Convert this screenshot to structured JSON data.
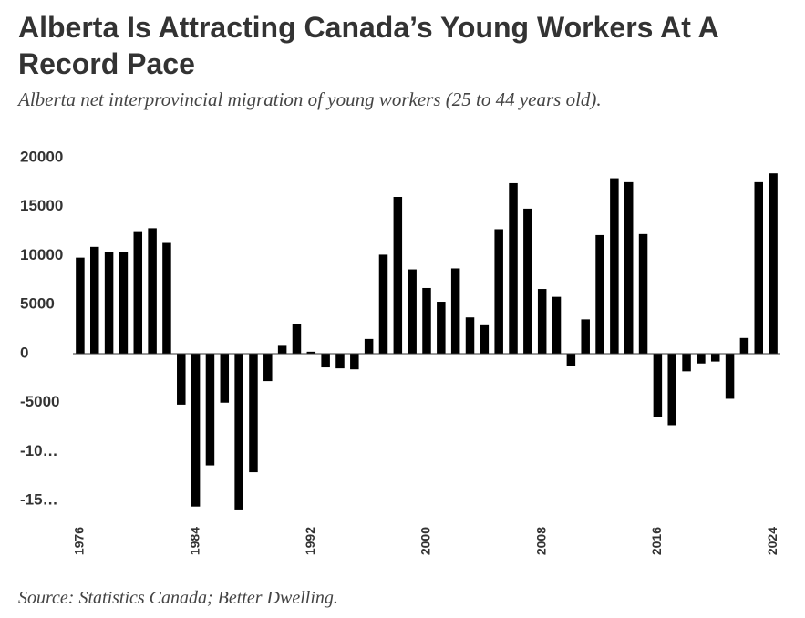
{
  "chart_data": {
    "type": "bar",
    "title": "Alberta Is Attracting Canada’s Young Workers At A Record Pace",
    "subtitle": "Alberta net interprovincial migration of young workers (25 to 44 years old).",
    "source": "Source: Statistics Canada; Better Dwelling.",
    "categories": [
      "1976",
      null,
      null,
      null,
      null,
      null,
      null,
      null,
      "1984",
      null,
      null,
      null,
      null,
      null,
      null,
      null,
      "1992",
      null,
      null,
      null,
      null,
      null,
      null,
      null,
      "2000",
      null,
      null,
      null,
      null,
      null,
      null,
      null,
      "2008",
      null,
      null,
      null,
      null,
      null,
      null,
      null,
      "2016",
      null,
      null,
      null,
      null,
      null,
      null,
      null,
      "2024"
    ],
    "values": [
      9800,
      10900,
      10400,
      10400,
      12500,
      12800,
      11300,
      -5200,
      -15600,
      -11400,
      -5000,
      -15900,
      -12100,
      -2800,
      800,
      3000,
      200,
      -1400,
      -1500,
      -1600,
      1500,
      10100,
      16000,
      8600,
      6700,
      5300,
      8700,
      3700,
      2900,
      12700,
      17400,
      14800,
      6600,
      5800,
      -1300,
      3500,
      12100,
      17900,
      17500,
      12200,
      -6500,
      -7300,
      -1800,
      -1000,
      -800,
      -4600,
      1600,
      17500,
      18400
    ],
    "color": "#000000",
    "ylim": [
      -16000,
      20000
    ],
    "yticks": [
      20000,
      15000,
      10000,
      5000,
      0,
      -5000,
      {
        "value": -10000,
        "label": "-10…"
      },
      {
        "value": -15000,
        "label": "-15…"
      }
    ],
    "grid": false
  }
}
